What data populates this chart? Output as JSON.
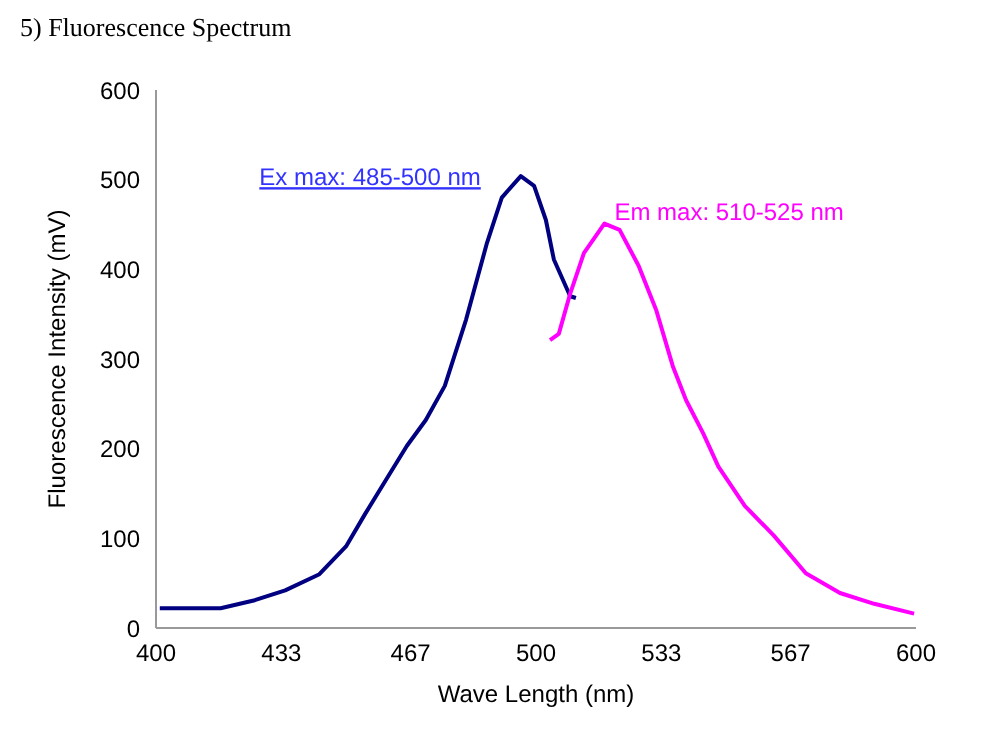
{
  "chart_data": {
    "type": "line",
    "title": "5) Fluorescence Spectrum",
    "xlabel": "Wave Length (nm)",
    "ylabel": "Fluorescence Intensity (mV)",
    "xlim": [
      400,
      600
    ],
    "xticks": [
      400,
      433,
      467,
      500,
      533,
      567,
      600
    ],
    "ylim": [
      0,
      600
    ],
    "yticks": [
      0,
      100,
      200,
      300,
      400,
      500,
      600
    ],
    "marker": "none",
    "line_style": "solid",
    "annotations": [
      {
        "text": "Ex max: 485-500 nm",
        "x": 496,
        "y": 505
      },
      {
        "text": "Em max: 510-525 nm",
        "x": 518,
        "y": 451
      }
    ],
    "series": [
      {
        "color": "#000080",
        "x": [
          401,
          417,
          426,
          434,
          443,
          450,
          455,
          460.5,
          466,
          471,
          476,
          481.6,
          487,
          491,
          496,
          499.5,
          502.6,
          504.7,
          509,
          510.5
        ],
        "values": [
          22,
          22,
          31,
          42,
          60,
          91,
          127,
          165,
          203,
          232,
          270,
          344,
          428,
          480,
          504,
          493,
          455,
          411,
          370,
          368
        ]
      },
      {
        "color": "#ff00ff",
        "x": [
          503.7,
          506,
          509,
          512.6,
          518,
          522,
          527,
          531.6,
          536,
          539.5,
          544,
          548,
          555,
          562.6,
          571,
          580,
          589,
          599.5
        ],
        "values": [
          321,
          328,
          373,
          418,
          451,
          444,
          404,
          355,
          292,
          254,
          217,
          180,
          136,
          103,
          61,
          39,
          27,
          16
        ]
      }
    ]
  }
}
